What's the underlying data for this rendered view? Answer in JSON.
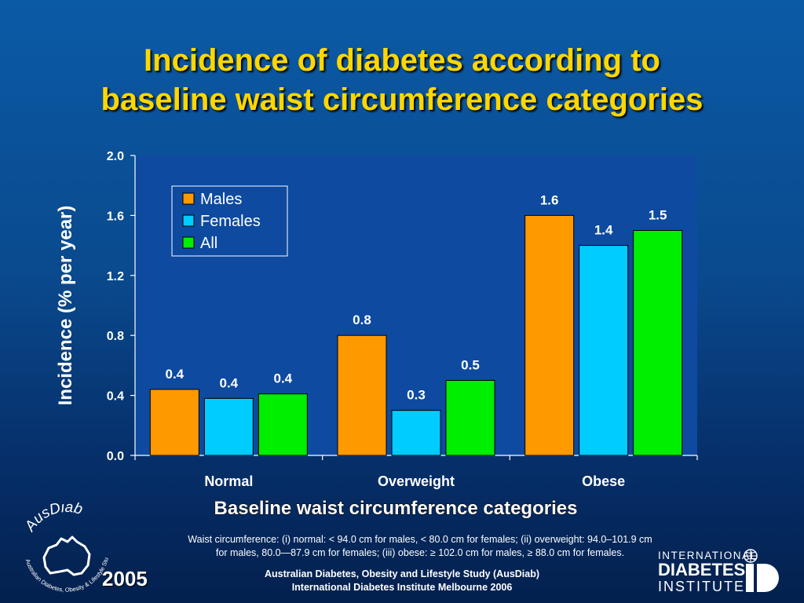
{
  "slide": {
    "title_line1": "Incidence of diabetes according to",
    "title_line2": "baseline waist circumference categories",
    "footnote_line1": "Waist circumference: (i) normal: < 94.0 cm for males, < 80.0 cm for females; (ii) overweight: 94.0–101.9 cm",
    "footnote_line2": "for males, 80.0—87.9 cm for females; (iii) obese: ≥ 102.0 cm for males, ≥ 88.0 cm for females.",
    "credit_line1": "Australian Diabetes, Obesity and Lifestyle Study (AusDiab)",
    "credit_line2": "International Diabetes Institute Melbourne 2006",
    "year": "2005",
    "ausdiab_logo_text": "AusDiab",
    "ausdiab_logo_subtext": "Australian Diabetes, Obesity & Lifestyle Study",
    "idi_line1": "INTERNATIONAL",
    "idi_line2": "DIABETES",
    "idi_line3": "INSTITUTE"
  },
  "colors": {
    "plot_bg": "#0d4aa0",
    "males": "#ff9900",
    "females": "#00ccff",
    "all": "#00ee00",
    "title": "#ffd700"
  },
  "chart_data": {
    "type": "bar",
    "title": "Incidence of diabetes according to baseline waist circumference categories",
    "xlabel": "Baseline waist circumference categories",
    "ylabel": "Incidence (% per year)",
    "categories": [
      "Normal",
      "Overweight",
      "Obese"
    ],
    "series": [
      {
        "name": "Males",
        "values": [
          0.44,
          0.8,
          1.6
        ],
        "labels": [
          "0.4",
          "0.8",
          "1.6"
        ]
      },
      {
        "name": "Females",
        "values": [
          0.38,
          0.3,
          1.4
        ],
        "labels": [
          "0.4",
          "0.3",
          "1.4"
        ]
      },
      {
        "name": "All",
        "values": [
          0.41,
          0.5,
          1.5
        ],
        "labels": [
          "0.4",
          "0.5",
          "1.5"
        ]
      }
    ],
    "ylim": [
      0,
      2.0
    ],
    "yticks": [
      "0.0",
      "0.4",
      "0.8",
      "1.2",
      "1.6",
      "2.0"
    ],
    "ytick_values": [
      0,
      0.4,
      0.8,
      1.2,
      1.6,
      2.0
    ],
    "grid": false,
    "legend": "top-left"
  }
}
